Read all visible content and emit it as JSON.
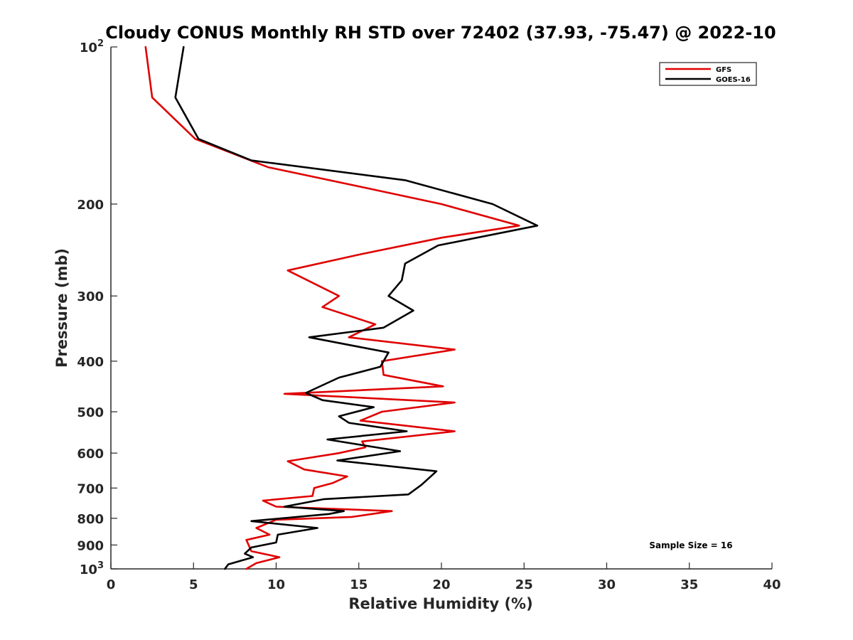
{
  "chart_data": {
    "type": "line",
    "title": "Cloudy CONUS Monthly RH STD over 72402 (37.93, -75.47) @ 2022-10",
    "xlabel": "Relative Humidity (%)",
    "ylabel": "Pressure (mb)",
    "xlim": [
      0,
      40
    ],
    "ylim": [
      100,
      1000
    ],
    "y_scale": "log",
    "y_reversed": true,
    "grid": false,
    "x_ticks": [
      0,
      5,
      10,
      15,
      20,
      25,
      30,
      35,
      40
    ],
    "x_tick_labels": [
      "0",
      "5",
      "10",
      "15",
      "20",
      "25",
      "30",
      "35",
      "40"
    ],
    "y_ticks": [
      100,
      200,
      300,
      400,
      500,
      600,
      700,
      800,
      900,
      1000
    ],
    "y_tick_labels": [
      {
        "base": "10",
        "exp": "2"
      },
      {
        "base": "200",
        "exp": ""
      },
      {
        "base": "300",
        "exp": ""
      },
      {
        "base": "400",
        "exp": ""
      },
      {
        "base": "500",
        "exp": ""
      },
      {
        "base": "600",
        "exp": ""
      },
      {
        "base": "700",
        "exp": ""
      },
      {
        "base": "800",
        "exp": ""
      },
      {
        "base": "900",
        "exp": ""
      },
      {
        "base": "10",
        "exp": "3"
      }
    ],
    "legend_position": "top-right",
    "annotation": "Sample Size = 16",
    "series": [
      {
        "name": "GFS",
        "color": "#e00000",
        "points": [
          [
            2.1,
            100
          ],
          [
            2.5,
            125
          ],
          [
            5.1,
            150
          ],
          [
            9.5,
            170
          ],
          [
            15,
            185
          ],
          [
            20,
            200
          ],
          [
            24.7,
            220
          ],
          [
            20,
            232
          ],
          [
            15,
            250
          ],
          [
            10.7,
            268
          ],
          [
            13.8,
            300
          ],
          [
            12.8,
            315
          ],
          [
            16,
            340
          ],
          [
            14.4,
            360
          ],
          [
            20.8,
            380
          ],
          [
            16.4,
            400
          ],
          [
            16.5,
            425
          ],
          [
            20.1,
            447
          ],
          [
            10.5,
            462
          ],
          [
            20.8,
            480
          ],
          [
            16.4,
            500
          ],
          [
            15.1,
            520
          ],
          [
            20.8,
            545
          ],
          [
            15.2,
            570
          ],
          [
            15.4,
            585
          ],
          [
            13.8,
            600
          ],
          [
            10.7,
            622
          ],
          [
            11.7,
            645
          ],
          [
            14.3,
            665
          ],
          [
            13.4,
            685
          ],
          [
            12.3,
            700
          ],
          [
            12.2,
            725
          ],
          [
            9.2,
            740
          ],
          [
            10,
            760
          ],
          [
            17,
            775
          ],
          [
            14.6,
            795
          ],
          [
            10,
            805
          ],
          [
            8.8,
            835
          ],
          [
            9.6,
            860
          ],
          [
            8.2,
            880
          ],
          [
            8.5,
            925
          ],
          [
            10.2,
            950
          ],
          [
            8.8,
            975
          ],
          [
            8.2,
            1000
          ]
        ]
      },
      {
        "name": "GOES-16",
        "color": "#000000",
        "points": [
          [
            4.4,
            100
          ],
          [
            3.9,
            125
          ],
          [
            5.3,
            150
          ],
          [
            8.5,
            165
          ],
          [
            17.8,
            180
          ],
          [
            23.1,
            200
          ],
          [
            25.8,
            220
          ],
          [
            19.8,
            240
          ],
          [
            17.8,
            260
          ],
          [
            17.6,
            280
          ],
          [
            16.8,
            300
          ],
          [
            18.3,
            320
          ],
          [
            16.5,
            345
          ],
          [
            12,
            360
          ],
          [
            16.8,
            385
          ],
          [
            16.3,
            410
          ],
          [
            13.8,
            430
          ],
          [
            11.8,
            460
          ],
          [
            12.8,
            475
          ],
          [
            15.9,
            490
          ],
          [
            13.8,
            510
          ],
          [
            14.4,
            525
          ],
          [
            17.9,
            545
          ],
          [
            13.1,
            565
          ],
          [
            17.5,
            595
          ],
          [
            13.7,
            620
          ],
          [
            19.7,
            650
          ],
          [
            18.8,
            690
          ],
          [
            18,
            720
          ],
          [
            12.9,
            735
          ],
          [
            10.5,
            760
          ],
          [
            14.1,
            775
          ],
          [
            13.2,
            785
          ],
          [
            8.5,
            810
          ],
          [
            12.5,
            835
          ],
          [
            10.1,
            860
          ],
          [
            10,
            890
          ],
          [
            8.5,
            910
          ],
          [
            8.1,
            935
          ],
          [
            8.6,
            950
          ],
          [
            7.1,
            980
          ],
          [
            6.9,
            1000
          ]
        ]
      }
    ]
  }
}
